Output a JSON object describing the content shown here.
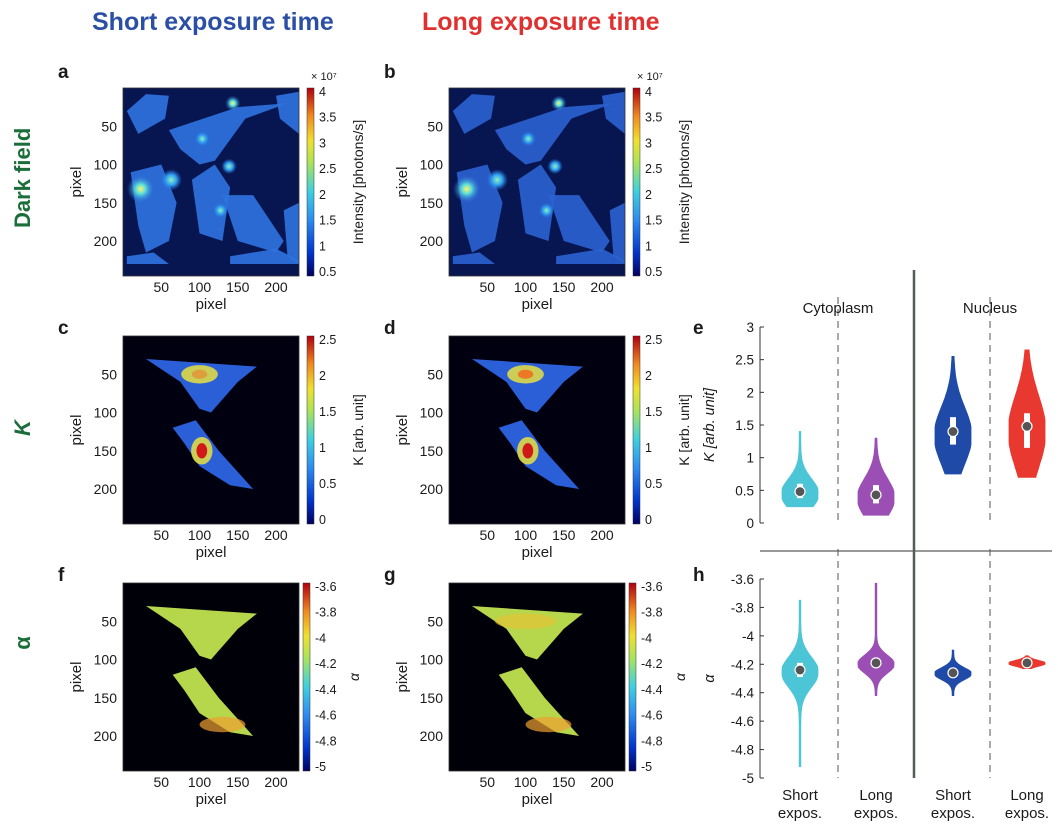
{
  "column_titles": {
    "short": {
      "text": "Short exposure time",
      "color": "#2b4fa5"
    },
    "long": {
      "text": "Long exposure time",
      "color": "#e03131"
    }
  },
  "row_labels": {
    "dark_field": "Dark field",
    "k": "K",
    "alpha": "α",
    "color": "#1b6e3a"
  },
  "panel_letters": {
    "a": "a",
    "b": "b",
    "c": "c",
    "d": "d",
    "e": "e",
    "f": "f",
    "g": "g",
    "h": "h"
  },
  "images": {
    "axis_label": "pixel",
    "x_ticks": [
      "50",
      "100",
      "150",
      "200"
    ],
    "y_ticks": [
      "50",
      "100",
      "150",
      "200"
    ],
    "colorbar_dark": {
      "label": "Intensity [photons/s]",
      "exponent": "× 10⁷",
      "ticks": [
        "4",
        "3.5",
        "3",
        "2.5",
        "2",
        "1.5",
        "1",
        "0.5"
      ]
    },
    "colorbar_k": {
      "label": "K [arb. unit]",
      "ticks": [
        "2.5",
        "2",
        "1.5",
        "1",
        "0.5",
        "0"
      ]
    },
    "colorbar_alpha": {
      "label": "α",
      "ticks": [
        "-3.6",
        "-3.8",
        "-4",
        "-4.2",
        "-4.4",
        "-4.6",
        "-4.8",
        "-5"
      ]
    }
  },
  "chart_data": [
    {
      "panel": "e",
      "type": "violin",
      "ylabel": "K [arb. unit]",
      "ylim": [
        0,
        3
      ],
      "y_ticks": [
        "0",
        "0.5",
        "1",
        "1.5",
        "2",
        "2.5",
        "3"
      ],
      "group_labels": [
        "Cytoplasm",
        "Nucleus"
      ],
      "categories": [
        "Short expos.",
        "Long expos.",
        "Short expos.",
        "Long expos."
      ],
      "series": [
        {
          "group": "Cytoplasm",
          "category": "Short expos.",
          "color": "#4cc6d6",
          "median": 0.48,
          "q1": 0.38,
          "q3": 0.6,
          "min": 0.25,
          "max": 1.4
        },
        {
          "group": "Cytoplasm",
          "category": "Long expos.",
          "color": "#9b4fb4",
          "median": 0.43,
          "q1": 0.3,
          "q3": 0.58,
          "min": 0.12,
          "max": 1.3
        },
        {
          "group": "Nucleus",
          "category": "Short expos.",
          "color": "#1f4aa8",
          "median": 1.4,
          "q1": 1.2,
          "q3": 1.62,
          "min": 0.75,
          "max": 2.55
        },
        {
          "group": "Nucleus",
          "category": "Long expos.",
          "color": "#e8382f",
          "median": 1.48,
          "q1": 1.15,
          "q3": 1.68,
          "min": 0.7,
          "max": 2.65
        }
      ]
    },
    {
      "panel": "h",
      "type": "violin",
      "ylabel": "α",
      "ylim": [
        -5,
        -3.6
      ],
      "y_ticks": [
        "-3.6",
        "-3.8",
        "-4",
        "-4.2",
        "-4.4",
        "-4.6",
        "-4.8",
        "-5"
      ],
      "categories": [
        "Short expos.",
        "Long expos.",
        "Short expos.",
        "Long expos."
      ],
      "series": [
        {
          "group": "Cytoplasm",
          "category": "Short expos.",
          "color": "#4cc6d6",
          "median": -4.24,
          "q1": -4.29,
          "q3": -4.19,
          "min": -4.92,
          "max": -3.75
        },
        {
          "group": "Cytoplasm",
          "category": "Long expos.",
          "color": "#9b4fb4",
          "median": -4.19,
          "q1": -4.22,
          "q3": -4.16,
          "min": -4.42,
          "max": -3.63
        },
        {
          "group": "Nucleus",
          "category": "Short expos.",
          "color": "#1f4aa8",
          "median": -4.26,
          "q1": -4.28,
          "q3": -4.24,
          "min": -4.42,
          "max": -4.1
        },
        {
          "group": "Nucleus",
          "category": "Long expos.",
          "color": "#e8382f",
          "median": -4.19,
          "q1": -4.2,
          "q3": -4.18,
          "min": -4.23,
          "max": -4.14
        }
      ]
    }
  ]
}
